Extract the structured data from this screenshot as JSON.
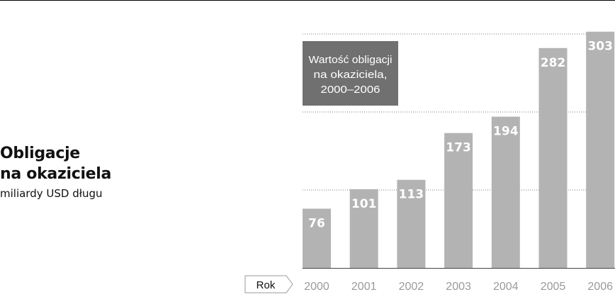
{
  "chart_title": {
    "line1": "Obligacje",
    "line2": "na okaziciela",
    "subtitle": "miliardy USD długu"
  },
  "chart_data": {
    "type": "bar",
    "categories": [
      "2000",
      "2001",
      "2002",
      "2003",
      "2004",
      "2005",
      "2006"
    ],
    "values": [
      76,
      101,
      113,
      173,
      194,
      282,
      303
    ],
    "title": "Obligacje na okaziciela",
    "subtitle": "miliardy USD długu",
    "xlabel": "Rok",
    "ylabel": "",
    "ylim": [
      0,
      310
    ],
    "grid": true,
    "annotation": [
      "Wartość obligacji",
      "na okaziciela,",
      "2000–2006"
    ],
    "colors": {
      "bar": "#b3b3b3",
      "bar_label": "#ffffff",
      "annotation_box": "#707070",
      "annotation_text": "#ffffff",
      "gridline": "#777777",
      "axis_tick_label": "#9a9a9a",
      "baseline": "#444444"
    }
  }
}
